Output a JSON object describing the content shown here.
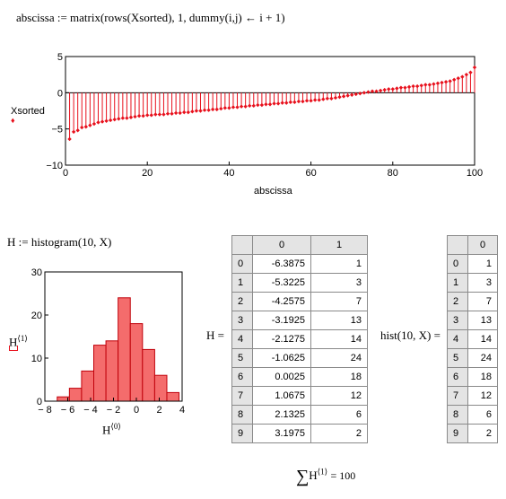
{
  "header": {
    "definition": "abscissa := matrix(rows(Xsorted), 1, dummy(i,j) ← i + 1)"
  },
  "stem_plot": {
    "ylabel": "Xsorted",
    "xlabel": "abscissa",
    "xticks": [
      "0",
      "20",
      "40",
      "60",
      "80",
      "100"
    ],
    "yticks": [
      "5",
      "0",
      "−5",
      "−10"
    ],
    "xlim": [
      0,
      100
    ],
    "ylim": [
      -10,
      5
    ],
    "color": "#e8101c"
  },
  "histogram_def": "H := histogram(10, X)",
  "hist_plot": {
    "ylabel": "H",
    "ylabel_sup": "⟨1⟩",
    "xlabel": "H",
    "xlabel_sup": "⟨0⟩",
    "xticks": [
      "− 8",
      "− 6",
      "− 4",
      "− 2",
      "0",
      "2",
      "4"
    ],
    "yticks": [
      "30",
      "20",
      "10",
      "0"
    ],
    "fill": "#f46c6c",
    "edge": "#c0000a"
  },
  "H_table": {
    "label": "H =",
    "col_headers": [
      "0",
      "1"
    ],
    "rows": [
      {
        "i": "0",
        "c0": "-6.3875",
        "c1": "1"
      },
      {
        "i": "1",
        "c0": "-5.3225",
        "c1": "3"
      },
      {
        "i": "2",
        "c0": "-4.2575",
        "c1": "7"
      },
      {
        "i": "3",
        "c0": "-3.1925",
        "c1": "13"
      },
      {
        "i": "4",
        "c0": "-2.1275",
        "c1": "14"
      },
      {
        "i": "5",
        "c0": "-1.0625",
        "c1": "24"
      },
      {
        "i": "6",
        "c0": "0.0025",
        "c1": "18"
      },
      {
        "i": "7",
        "c0": "1.0675",
        "c1": "12"
      },
      {
        "i": "8",
        "c0": "2.1325",
        "c1": "6"
      },
      {
        "i": "9",
        "c0": "3.1975",
        "c1": "2"
      }
    ]
  },
  "hist_table": {
    "label": "hist(10, X) =",
    "col_header": "0",
    "rows": [
      {
        "i": "0",
        "v": "1"
      },
      {
        "i": "1",
        "v": "3"
      },
      {
        "i": "2",
        "v": "7"
      },
      {
        "i": "3",
        "v": "13"
      },
      {
        "i": "4",
        "v": "14"
      },
      {
        "i": "5",
        "v": "24"
      },
      {
        "i": "6",
        "v": "18"
      },
      {
        "i": "7",
        "v": "12"
      },
      {
        "i": "8",
        "v": "6"
      },
      {
        "i": "9",
        "v": "2"
      }
    ]
  },
  "sum_expr": {
    "sigma": "∑",
    "var": "H",
    "sup": "⟨1⟩",
    "result": "= 100"
  },
  "chart_data": [
    {
      "type": "scatter",
      "title": "",
      "xlabel": "abscissa",
      "ylabel": "Xsorted",
      "xlim": [
        0,
        100
      ],
      "ylim": [
        -10,
        5
      ],
      "series": [
        {
          "x": [
            1,
            2,
            3,
            4,
            5,
            6,
            7,
            8,
            9,
            10,
            11,
            12,
            13,
            14,
            15,
            16,
            17,
            18,
            19,
            20,
            21,
            22,
            23,
            24,
            25,
            26,
            27,
            28,
            29,
            30,
            31,
            32,
            33,
            34,
            35,
            36,
            37,
            38,
            39,
            40,
            41,
            42,
            43,
            44,
            45,
            46,
            47,
            48,
            49,
            50,
            51,
            52,
            53,
            54,
            55,
            56,
            57,
            58,
            59,
            60,
            61,
            62,
            63,
            64,
            65,
            66,
            67,
            68,
            69,
            70,
            71,
            72,
            73,
            74,
            75,
            76,
            77,
            78,
            79,
            80,
            81,
            82,
            83,
            84,
            85,
            86,
            87,
            88,
            89,
            90,
            91,
            92,
            93,
            94,
            95,
            96,
            97,
            98,
            99,
            100
          ],
          "values": [
            -6.4,
            -5.4,
            -5.2,
            -4.8,
            -4.7,
            -4.5,
            -4.3,
            -4.1,
            -4.0,
            -3.9,
            -3.8,
            -3.7,
            -3.6,
            -3.5,
            -3.5,
            -3.4,
            -3.3,
            -3.2,
            -3.2,
            -3.1,
            -3.1,
            -3.0,
            -3.0,
            -3.0,
            -2.9,
            -2.9,
            -2.8,
            -2.8,
            -2.7,
            -2.7,
            -2.6,
            -2.5,
            -2.5,
            -2.4,
            -2.4,
            -2.3,
            -2.3,
            -2.2,
            -2.1,
            -2.1,
            -2.0,
            -2.0,
            -1.9,
            -1.9,
            -1.8,
            -1.8,
            -1.7,
            -1.7,
            -1.6,
            -1.6,
            -1.5,
            -1.5,
            -1.4,
            -1.4,
            -1.3,
            -1.3,
            -1.2,
            -1.2,
            -1.1,
            -1.1,
            -1.0,
            -1.0,
            -0.9,
            -0.8,
            -0.8,
            -0.7,
            -0.6,
            -0.5,
            -0.4,
            -0.3,
            -0.2,
            -0.1,
            0.0,
            0.1,
            0.2,
            0.2,
            0.3,
            0.4,
            0.5,
            0.5,
            0.6,
            0.7,
            0.7,
            0.8,
            0.9,
            0.9,
            1.0,
            1.1,
            1.1,
            1.2,
            1.3,
            1.4,
            1.5,
            1.6,
            1.8,
            2.0,
            2.2,
            2.5,
            2.8,
            3.5
          ]
        }
      ]
    },
    {
      "type": "bar",
      "title": "",
      "xlabel": "H⟨0⟩",
      "ylabel": "H⟨1⟩",
      "xlim": [
        -8,
        4
      ],
      "ylim": [
        0,
        30
      ],
      "categories": [
        "-6.3875",
        "-5.3225",
        "-4.2575",
        "-3.1925",
        "-2.1275",
        "-1.0625",
        "0.0025",
        "1.0675",
        "2.1325",
        "3.1975"
      ],
      "values": [
        1,
        3,
        7,
        13,
        14,
        24,
        18,
        12,
        6,
        2
      ]
    }
  ]
}
